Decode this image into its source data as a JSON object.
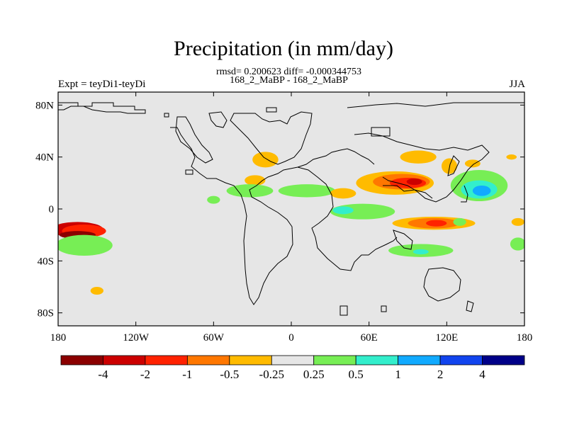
{
  "title": "Precipitation (in mm/day)",
  "stats": "rmsd= 0.200623 diff= -0.000344753",
  "subtitle": "168_2_MaBP - 168_2_MaBP",
  "left_label": "Expt = teyDi1-teyDi",
  "right_label": "JJA",
  "chart_data": {
    "type": "heatmap",
    "title": "Precipitation (in mm/day)",
    "projection": "cylindrical-equidistant",
    "lon_range": [
      -180,
      180
    ],
    "lat_range": [
      -90,
      90
    ],
    "x_ticks": [
      {
        "lon": -180,
        "label": "180"
      },
      {
        "lon": -120,
        "label": "120W"
      },
      {
        "lon": -60,
        "label": "60W"
      },
      {
        "lon": 0,
        "label": "0"
      },
      {
        "lon": 60,
        "label": "60E"
      },
      {
        "lon": 120,
        "label": "120E"
      },
      {
        "lon": 180,
        "label": "180"
      }
    ],
    "y_ticks": [
      {
        "lat": 80,
        "label": "80N"
      },
      {
        "lat": 40,
        "label": "40N"
      },
      {
        "lat": 0,
        "label": "0"
      },
      {
        "lat": -40,
        "label": "40S"
      },
      {
        "lat": -80,
        "label": "80S"
      }
    ],
    "colorbar": {
      "colors": [
        "#8b0000",
        "#cc0000",
        "#ff2200",
        "#ff7700",
        "#ffbb00",
        "#e6e6e6",
        "#77ee55",
        "#33eecc",
        "#11aaff",
        "#1144ee",
        "#000088"
      ],
      "labels": [
        "-4",
        "-2",
        "-1",
        "-0.5",
        "-0.25",
        "0.25",
        "0.5",
        "1",
        "2",
        "4"
      ]
    },
    "anomalies": [
      {
        "lon": -165,
        "lat": -16,
        "rlon": 20,
        "rlat": 6,
        "level": -2
      },
      {
        "lon": -160,
        "lat": -17,
        "rlon": 17,
        "rlat": 5,
        "level": -1
      },
      {
        "lon": -165,
        "lat": -20,
        "rlon": 14,
        "rlat": 3,
        "level": -4
      },
      {
        "lon": -160,
        "lat": -28,
        "rlon": 22,
        "rlat": 8,
        "level": 0.25
      },
      {
        "lon": -150,
        "lat": -63,
        "rlon": 5,
        "rlat": 3,
        "level": -0.25
      },
      {
        "lon": -20,
        "lat": 38,
        "rlon": 10,
        "rlat": 6,
        "level": -0.25
      },
      {
        "lon": -28,
        "lat": 22,
        "rlon": 8,
        "rlat": 4,
        "level": -0.25
      },
      {
        "lon": -32,
        "lat": 14,
        "rlon": 18,
        "rlat": 5,
        "level": 0.25
      },
      {
        "lon": 12,
        "lat": 14,
        "rlon": 22,
        "rlat": 5,
        "level": 0.25
      },
      {
        "lon": 40,
        "lat": 12,
        "rlon": 10,
        "rlat": 4,
        "level": -0.25
      },
      {
        "lon": 80,
        "lat": 20,
        "rlon": 30,
        "rlat": 9,
        "level": -0.25
      },
      {
        "lon": 85,
        "lat": 21,
        "rlon": 22,
        "rlat": 6,
        "level": -0.5
      },
      {
        "lon": 90,
        "lat": 20,
        "rlon": 14,
        "rlat": 4,
        "level": -1
      },
      {
        "lon": 95,
        "lat": 21,
        "rlon": 6,
        "rlat": 2.5,
        "level": -2
      },
      {
        "lon": 98,
        "lat": 40,
        "rlon": 14,
        "rlat": 5,
        "level": -0.25
      },
      {
        "lon": 145,
        "lat": 18,
        "rlon": 22,
        "rlat": 12,
        "level": 0.25
      },
      {
        "lon": 145,
        "lat": 15,
        "rlon": 14,
        "rlat": 7,
        "level": 0.5
      },
      {
        "lon": 147,
        "lat": 14,
        "rlon": 7,
        "rlat": 4,
        "level": 1
      },
      {
        "lon": 55,
        "lat": -2,
        "rlon": 25,
        "rlat": 6,
        "level": 0.25
      },
      {
        "lon": 40,
        "lat": -1,
        "rlon": 8,
        "rlat": 3,
        "level": 0.5
      },
      {
        "lon": 110,
        "lat": -11,
        "rlon": 32,
        "rlat": 5,
        "level": -0.25
      },
      {
        "lon": 110,
        "lat": -11,
        "rlon": 20,
        "rlat": 4,
        "level": -0.5
      },
      {
        "lon": 112,
        "lat": -11,
        "rlon": 8,
        "rlat": 2.5,
        "level": -1
      },
      {
        "lon": 100,
        "lat": -32,
        "rlon": 25,
        "rlat": 5,
        "level": 0.25
      },
      {
        "lon": 100,
        "lat": -33,
        "rlon": 6,
        "rlat": 2,
        "level": 0.5
      },
      {
        "lon": 175,
        "lat": -27,
        "rlon": 6,
        "rlat": 5,
        "level": 0.25
      },
      {
        "lon": 175,
        "lat": -10,
        "rlon": 5,
        "rlat": 3,
        "level": -0.25
      },
      {
        "lon": 122,
        "lat": 33,
        "rlon": 6,
        "rlat": 6,
        "level": -0.25
      },
      {
        "lon": 140,
        "lat": 35,
        "rlon": 6,
        "rlat": 3,
        "level": -0.25
      },
      {
        "lon": 170,
        "lat": 40,
        "rlon": 4,
        "rlat": 2,
        "level": -0.25
      },
      {
        "lon": -60,
        "lat": 7,
        "rlon": 5,
        "rlat": 3,
        "level": 0.25
      },
      {
        "lon": 130,
        "lat": -10,
        "rlon": 5,
        "rlat": 3,
        "level": 0.25
      }
    ]
  }
}
